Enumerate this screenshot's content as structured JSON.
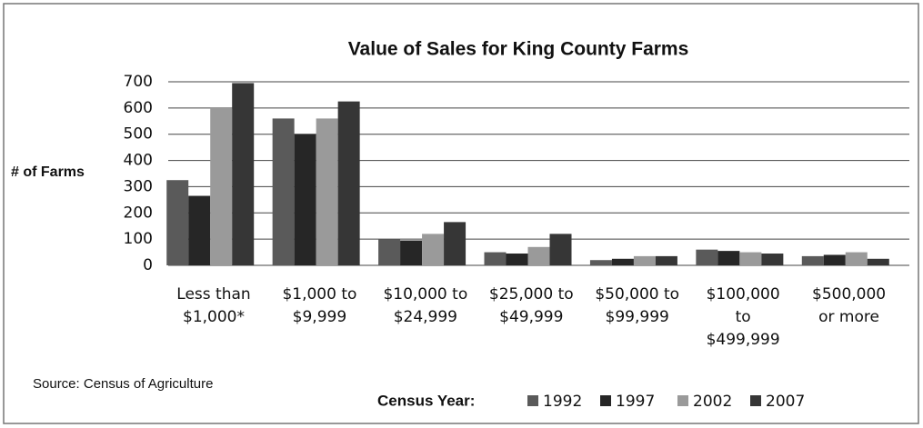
{
  "chart_data": {
    "type": "bar",
    "title": "Value of Sales for King County Farms",
    "y_label": "# of Farms",
    "source": "Source: Census of Agriculture",
    "legend_title": "Census Year:",
    "categories": [
      "Less than\n$1,000*",
      "$1,000 to\n$9,999",
      "$10,000 to\n$24,999",
      "$25,000 to\n$49,999",
      "$50,000 to\n$99,999",
      "$100,000\nto\n$499,999",
      "$500,000\nor more"
    ],
    "series": [
      {
        "name": "1992",
        "color": "#5a5a5a",
        "values": [
          325,
          560,
          100,
          50,
          20,
          60,
          35
        ]
      },
      {
        "name": "1997",
        "color": "#262626",
        "values": [
          265,
          500,
          95,
          45,
          25,
          55,
          40
        ]
      },
      {
        "name": "2002",
        "color": "#9a9a9a",
        "values": [
          600,
          560,
          120,
          70,
          35,
          50,
          50
        ]
      },
      {
        "name": "2007",
        "color": "#363636",
        "values": [
          695,
          625,
          165,
          120,
          35,
          45,
          25
        ]
      }
    ],
    "ylim": [
      0,
      700
    ],
    "yticks": [
      0,
      100,
      200,
      300,
      400,
      500,
      600,
      700
    ],
    "grid": true,
    "legend": "bottom"
  }
}
